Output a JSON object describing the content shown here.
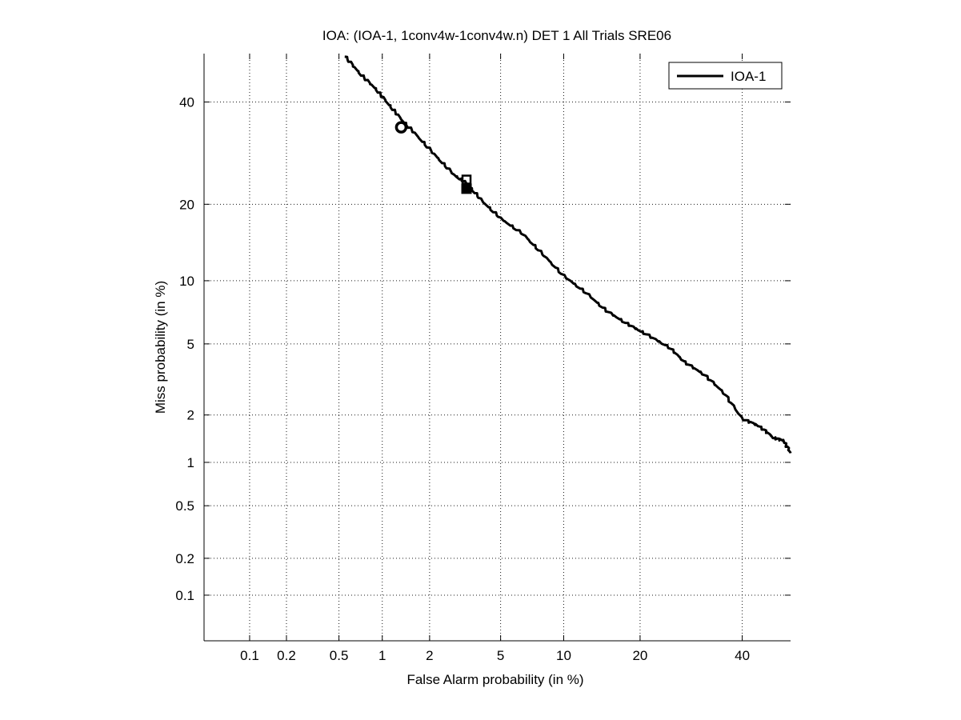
{
  "chart_data": {
    "type": "line",
    "title": "IOA: (IOA-1, 1conv4w-1conv4w.n) DET 1 All Trials SRE06",
    "xlabel": "False Alarm probability (in %)",
    "ylabel": "Miss probability (in %)",
    "x_scale": "normal-deviate (probit)",
    "y_scale": "normal-deviate (probit)",
    "xlim": [
      0.04,
      51
    ],
    "ylim": [
      0.04,
      51
    ],
    "x_ticks": [
      0.1,
      0.2,
      0.5,
      1,
      2,
      5,
      10,
      20,
      40
    ],
    "x_tick_labels": [
      "0.1",
      "0.2",
      "0.5",
      "1",
      "2",
      "5",
      "10",
      "20",
      "40"
    ],
    "y_ticks": [
      0.1,
      0.2,
      0.5,
      1,
      2,
      5,
      10,
      20,
      40
    ],
    "y_tick_labels": [
      "0.1",
      "0.2",
      "0.5",
      "1",
      "2",
      "5",
      "10",
      "20",
      "40"
    ],
    "grid": true,
    "legend_position": "top-right",
    "series": [
      {
        "name": "IOA-1",
        "color": "#000000",
        "points": [
          {
            "x": 0.55,
            "y": 50.5
          },
          {
            "x": 0.7,
            "y": 46.5
          },
          {
            "x": 0.9,
            "y": 43.0
          },
          {
            "x": 1.1,
            "y": 39.5
          },
          {
            "x": 1.35,
            "y": 36.0
          },
          {
            "x": 1.7,
            "y": 32.5
          },
          {
            "x": 2.2,
            "y": 28.5
          },
          {
            "x": 2.8,
            "y": 25.0
          },
          {
            "x": 3.3,
            "y": 23.5
          },
          {
            "x": 4.0,
            "y": 20.5
          },
          {
            "x": 5.0,
            "y": 17.8
          },
          {
            "x": 6.5,
            "y": 15.5
          },
          {
            "x": 8.0,
            "y": 13.0
          },
          {
            "x": 10.0,
            "y": 10.5
          },
          {
            "x": 12.5,
            "y": 8.8
          },
          {
            "x": 15.0,
            "y": 7.3
          },
          {
            "x": 18.0,
            "y": 6.3
          },
          {
            "x": 21.0,
            "y": 5.6
          },
          {
            "x": 25.0,
            "y": 4.8
          },
          {
            "x": 28.0,
            "y": 4.0
          },
          {
            "x": 32.0,
            "y": 3.4
          },
          {
            "x": 36.0,
            "y": 2.7
          },
          {
            "x": 40.0,
            "y": 1.9
          },
          {
            "x": 44.0,
            "y": 1.7
          },
          {
            "x": 47.0,
            "y": 1.45
          },
          {
            "x": 49.5,
            "y": 1.38
          },
          {
            "x": 51.0,
            "y": 1.15
          }
        ]
      }
    ],
    "markers": [
      {
        "shape": "circle",
        "x": 1.33,
        "y": 34.5
      },
      {
        "shape": "square",
        "x": 3.28,
        "y": 22.6
      },
      {
        "shape": "square-open",
        "x": 3.28,
        "y": 24.2
      }
    ]
  }
}
